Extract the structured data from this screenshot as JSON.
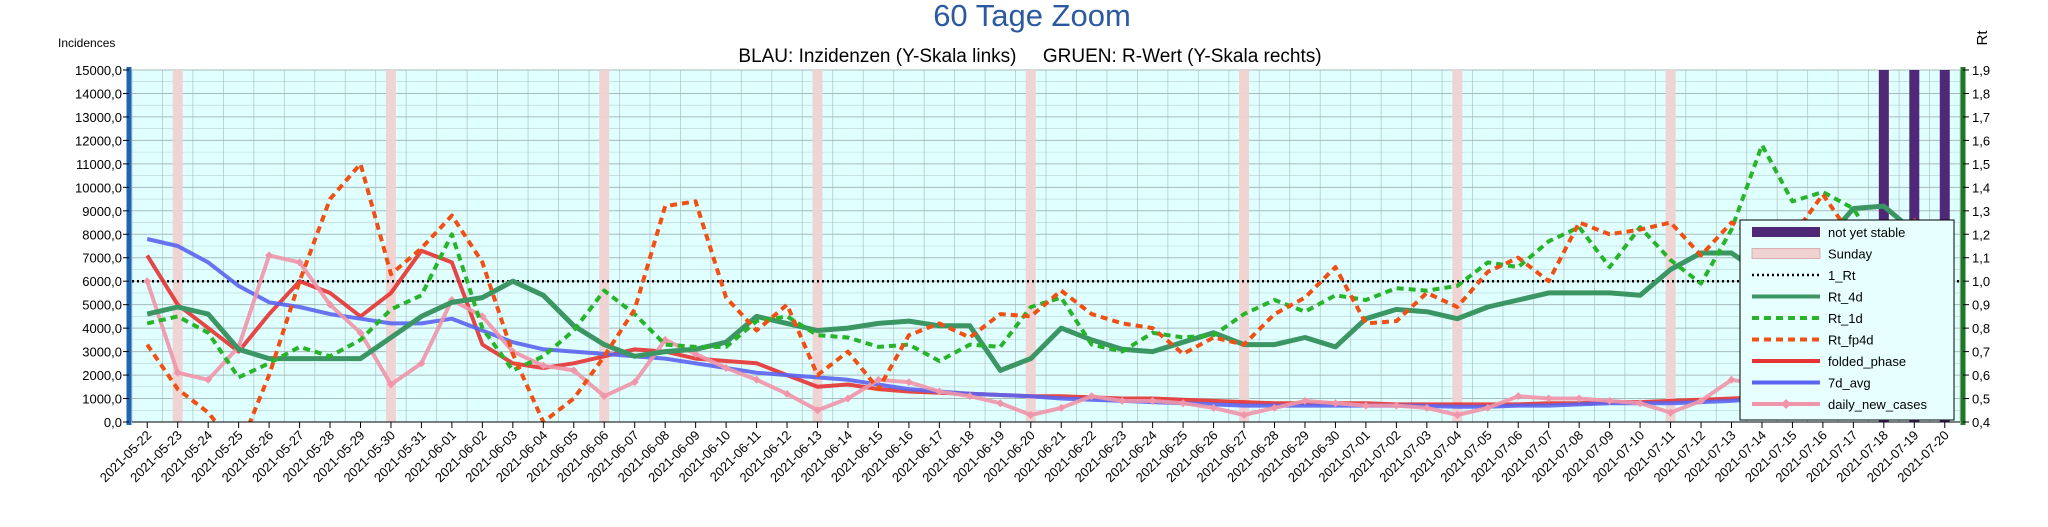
{
  "chart_data": {
    "type": "line",
    "title": "60 Tage Zoom",
    "subtitle": "BLAU: Inzidenzen (Y-Skala links)     GRUEN: R-Wert (Y-Skala rechts)",
    "ylabel_left": "Incidences",
    "ylabel_right": "Rt",
    "ylim_left": [
      0,
      15000
    ],
    "ylim_right": [
      0.4,
      1.9
    ],
    "yticks_left": [
      "0,0",
      "1000,0",
      "2000,0",
      "3000,0",
      "4000,0",
      "5000,0",
      "6000,0",
      "7000,0",
      "8000,0",
      "9000,0",
      "10000,0",
      "11000,0",
      "12000,0",
      "13000,0",
      "14000,0",
      "15000,0"
    ],
    "yticks_right": [
      "0,4",
      "0,5",
      "0,6",
      "0,7",
      "0,8",
      "0,9",
      "1,0",
      "1,1",
      "1,2",
      "1,3",
      "1,4",
      "1,5",
      "1,6",
      "1,7",
      "1,8",
      "1,9"
    ],
    "x": [
      "2021-05-22",
      "2021-05-23",
      "2021-05-24",
      "2021-05-25",
      "2021-05-26",
      "2021-05-27",
      "2021-05-28",
      "2021-05-29",
      "2021-05-30",
      "2021-05-31",
      "2021-06-01",
      "2021-06-02",
      "2021-06-03",
      "2021-06-04",
      "2021-06-05",
      "2021-06-06",
      "2021-06-07",
      "2021-06-08",
      "2021-06-09",
      "2021-06-10",
      "2021-06-11",
      "2021-06-12",
      "2021-06-13",
      "2021-06-14",
      "2021-06-15",
      "2021-06-16",
      "2021-06-17",
      "2021-06-18",
      "2021-06-19",
      "2021-06-20",
      "2021-06-21",
      "2021-06-22",
      "2021-06-23",
      "2021-06-24",
      "2021-06-25",
      "2021-06-26",
      "2021-06-27",
      "2021-06-28",
      "2021-06-29",
      "2021-06-30",
      "2021-07-01",
      "2021-07-02",
      "2021-07-03",
      "2021-07-04",
      "2021-07-05",
      "2021-07-06",
      "2021-07-07",
      "2021-07-08",
      "2021-07-09",
      "2021-07-10",
      "2021-07-11",
      "2021-07-12",
      "2021-07-13",
      "2021-07-14",
      "2021-07-15",
      "2021-07-16",
      "2021-07-17",
      "2021-07-18",
      "2021-07-19",
      "2021-07-20"
    ],
    "sundays": [
      "2021-05-23",
      "2021-05-30",
      "2021-06-06",
      "2021-06-13",
      "2021-06-20",
      "2021-06-27",
      "2021-07-04",
      "2021-07-11",
      "2021-07-18"
    ],
    "not_yet_stable": [
      "2021-07-18",
      "2021-07-19",
      "2021-07-20"
    ],
    "threshold_rt": 1.0,
    "series": [
      {
        "name": "Rt_4d",
        "axis": "right",
        "color": "#3c9664",
        "style": "solid",
        "width": 5,
        "values": [
          0.86,
          0.89,
          0.86,
          0.71,
          0.67,
          0.67,
          0.67,
          0.67,
          0.76,
          0.85,
          0.91,
          0.93,
          1.0,
          0.94,
          0.81,
          0.73,
          0.68,
          0.7,
          0.71,
          0.74,
          0.85,
          0.82,
          0.79,
          0.8,
          0.82,
          0.83,
          0.81,
          0.81,
          0.62,
          0.67,
          0.8,
          0.75,
          0.71,
          0.7,
          0.74,
          0.78,
          0.73,
          0.73,
          0.76,
          0.72,
          0.84,
          0.88,
          0.87,
          0.84,
          0.89,
          0.92,
          0.95,
          0.95,
          0.95,
          0.94,
          1.05,
          1.12,
          1.12,
          1.03,
          1.04,
          1.16,
          1.31,
          1.32,
          1.21,
          1.15
        ]
      },
      {
        "name": "Rt_1d",
        "axis": "right",
        "color": "#28b428",
        "style": "dash",
        "width": 4,
        "values": [
          0.82,
          0.85,
          0.78,
          0.59,
          0.65,
          0.72,
          0.68,
          0.75,
          0.88,
          0.94,
          1.2,
          0.8,
          0.62,
          0.68,
          0.79,
          0.96,
          0.86,
          0.73,
          0.72,
          0.72,
          0.83,
          0.85,
          0.77,
          0.76,
          0.72,
          0.73,
          0.66,
          0.73,
          0.72,
          0.89,
          0.93,
          0.73,
          0.7,
          0.78,
          0.76,
          0.77,
          0.86,
          0.92,
          0.87,
          0.94,
          0.92,
          0.97,
          0.96,
          0.98,
          1.08,
          1.06,
          1.17,
          1.23,
          1.06,
          1.23,
          1.09,
          0.99,
          1.22,
          1.58,
          1.34,
          1.38,
          1.31,
          1.1,
          1.25,
          0.98
        ]
      },
      {
        "name": "Rt_fp4d",
        "axis": "right",
        "color": "#f05014",
        "style": "dash",
        "width": 4,
        "values": [
          0.73,
          0.54,
          0.44,
          0.28,
          0.6,
          1.0,
          1.35,
          1.5,
          1.03,
          1.14,
          1.28,
          1.08,
          0.69,
          0.4,
          0.5,
          0.68,
          0.88,
          1.32,
          1.34,
          0.93,
          0.79,
          0.9,
          0.6,
          0.7,
          0.54,
          0.77,
          0.82,
          0.76,
          0.86,
          0.85,
          0.96,
          0.86,
          0.82,
          0.8,
          0.69,
          0.76,
          0.73,
          0.86,
          0.93,
          1.06,
          0.82,
          0.83,
          0.95,
          0.89,
          1.04,
          1.1,
          1.0,
          1.25,
          1.2,
          1.22,
          1.25,
          1.11,
          1.25,
          1.18,
          1.19,
          1.37,
          1.18,
          1.18,
          1.26,
          0.78
        ]
      }
    ],
    "incidence_series": [
      {
        "name": "folded_phase",
        "axis": "left",
        "color": "#e63232",
        "style": "solid",
        "width": 4,
        "values": [
          7100,
          5000,
          4000,
          3000,
          4600,
          6000,
          5500,
          4500,
          5500,
          7300,
          6800,
          3300,
          2500,
          2300,
          2500,
          2800,
          3100,
          3000,
          2700,
          2600,
          2500,
          2000,
          1500,
          1600,
          1400,
          1300,
          1250,
          1200,
          1150,
          1100,
          1100,
          1050,
          1000,
          1000,
          950,
          900,
          850,
          800,
          800,
          800,
          800,
          750,
          750,
          750,
          750,
          750,
          800,
          800,
          850,
          850,
          900,
          950,
          1000,
          1050,
          1100,
          1200,
          1250,
          1350,
          1400,
          1300
        ]
      },
      {
        "name": "7d_avg",
        "axis": "left",
        "color": "#5a64f0",
        "style": "solid",
        "width": 4,
        "values": [
          7800,
          7500,
          6800,
          5800,
          5100,
          4900,
          4600,
          4400,
          4200,
          4200,
          4400,
          3900,
          3400,
          3100,
          3000,
          2900,
          2800,
          2700,
          2500,
          2300,
          2100,
          2000,
          1900,
          1800,
          1600,
          1400,
          1300,
          1200,
          1150,
          1100,
          1000,
          950,
          900,
          850,
          800,
          750,
          700,
          700,
          700,
          700,
          700,
          700,
          680,
          650,
          650,
          700,
          700,
          750,
          800,
          800,
          800,
          850,
          900,
          1000,
          1050,
          1100,
          1150,
          1200,
          1250,
          1300
        ]
      },
      {
        "name": "daily_new_cases",
        "axis": "left",
        "color": "#f096aa",
        "style": "solid",
        "width": 4,
        "marker": "diamond",
        "values": [
          6000,
          2100,
          1800,
          3200,
          7100,
          6800,
          5000,
          3800,
          1600,
          2500,
          5200,
          4500,
          3000,
          2400,
          2200,
          1100,
          1700,
          3500,
          2900,
          2300,
          1800,
          1200,
          500,
          1000,
          1800,
          1700,
          1300,
          1100,
          800,
          300,
          600,
          1100,
          900,
          900,
          800,
          600,
          300,
          600,
          900,
          800,
          700,
          700,
          600,
          300,
          600,
          1100,
          1000,
          1000,
          900,
          800,
          400,
          900,
          1800,
          1600,
          1500,
          1600,
          1300,
          500,
          1200,
          1700
        ]
      }
    ],
    "legend": {
      "position": "right",
      "entries": [
        {
          "label": "not yet stable",
          "kind": "bar",
          "color": "#502878"
        },
        {
          "label": "Sunday",
          "kind": "bar",
          "color": "#f0d2d2"
        },
        {
          "label": "1_Rt",
          "kind": "dotted",
          "color": "#000000"
        },
        {
          "label": "Rt_4d",
          "kind": "solid",
          "color": "#3c9664"
        },
        {
          "label": "Rt_1d",
          "kind": "dash",
          "color": "#28b428"
        },
        {
          "label": "Rt_fp4d",
          "kind": "dash",
          "color": "#f05014"
        },
        {
          "label": "folded_phase",
          "kind": "solid",
          "color": "#e63232"
        },
        {
          "label": "7d_avg",
          "kind": "solid",
          "color": "#5a64f0"
        },
        {
          "label": "daily_new_cases",
          "kind": "marker",
          "color": "#f096aa"
        }
      ]
    },
    "colors": {
      "plot_bg": "#e0ffff",
      "grid": "#a0b4b4",
      "left_axis": "#1e64b4",
      "right_axis": "#1e7828",
      "title": "#2c5aa0"
    }
  }
}
